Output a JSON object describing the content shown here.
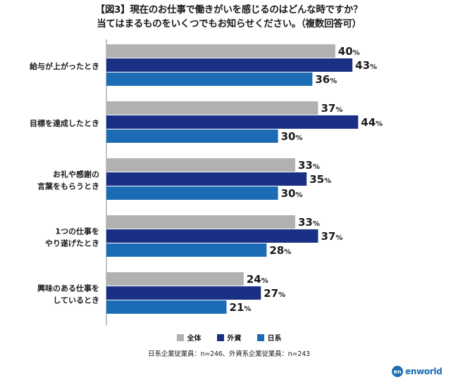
{
  "title": {
    "line1": "【図3】現在のお仕事で働きがいを感じるのはどんな時ですか？",
    "line2": "当てはまるものをいくつでもお知らせください。（複数回答可）"
  },
  "legend": [
    {
      "label": "全体",
      "color": "#b1b1b1"
    },
    {
      "label": "外資",
      "color": "#1a3085"
    },
    {
      "label": "日系",
      "color": "#1c6cb5"
    }
  ],
  "note": "日系企業従業員：n=246、外資系企業従業員：n=243",
  "brand": {
    "mark": "en",
    "text": "enworld"
  },
  "chart_data": {
    "type": "bar",
    "orientation": "horizontal",
    "value_suffix": "%",
    "categories": [
      [
        "給与が上がったとき"
      ],
      [
        "目標を達成したとき"
      ],
      [
        "お礼や感謝の",
        "言葉をもらうとき"
      ],
      [
        "1つの仕事を",
        "やり遂げたとき"
      ],
      [
        "興味のある仕事を",
        "しているとき"
      ]
    ],
    "series": [
      {
        "name": "全体",
        "values": [
          40,
          37,
          33,
          33,
          24
        ],
        "color": "#b1b1b1"
      },
      {
        "name": "外資",
        "values": [
          43,
          44,
          35,
          37,
          27
        ],
        "color": "#1a3085"
      },
      {
        "name": "日系",
        "values": [
          36,
          30,
          30,
          28,
          21
        ],
        "color": "#1c6cb5"
      }
    ],
    "grid": false,
    "legend_position": "bottom"
  }
}
